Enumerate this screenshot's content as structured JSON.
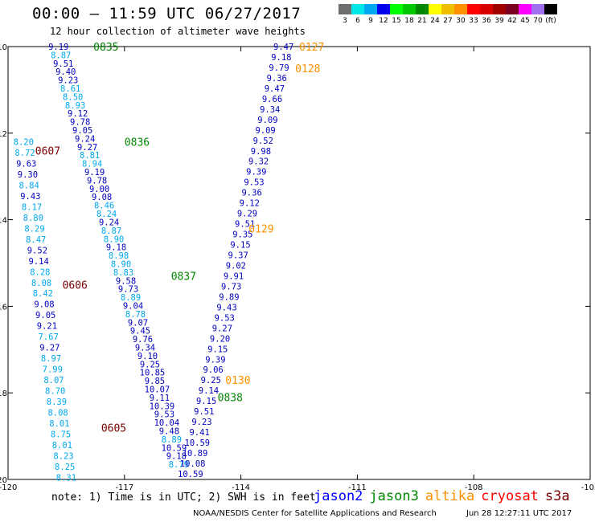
{
  "header": {
    "title": "00:00 – 11:59 UTC 06/27/2017",
    "subtitle": "12 hour collection of altimeter wave heights"
  },
  "colorbar": {
    "colors": [
      "#6e6e6e",
      "#00e8e8",
      "#00a8f0",
      "#0000f0",
      "#00ff00",
      "#00c800",
      "#008800",
      "#ffff00",
      "#f0c000",
      "#ff9000",
      "#ff0000",
      "#d80000",
      "#a00000",
      "#7a0020",
      "#ff00ff",
      "#a070f0",
      "#000000"
    ],
    "labels": [
      "3",
      "6",
      "9",
      "12",
      "15",
      "18",
      "21",
      "24",
      "27",
      "30",
      "33",
      "36",
      "39",
      "42",
      "45",
      "70",
      "(ft)"
    ]
  },
  "note": "note: 1) Time is in UTC; 2) SWH is in feet",
  "legend": [
    {
      "label": "jason2",
      "color": "#0000ff"
    },
    {
      "label": "jason3",
      "color": "#008800"
    },
    {
      "label": "altika",
      "color": "#ff9000"
    },
    {
      "label": "cryosat",
      "color": "#ff0000"
    },
    {
      "label": "s3a",
      "color": "#7a0000"
    }
  ],
  "footer": {
    "credit": "NOAA/NESDIS Center for Satellite Applications and Research",
    "timestamp": "Jun 28 12:27:11 UTC 2017"
  },
  "chart_data": {
    "type": "scatter",
    "xlim": [
      -120,
      -105
    ],
    "ylim": [
      -20,
      -10
    ],
    "x_ticks": [
      -120,
      -117,
      -114,
      -111,
      -108,
      -105
    ],
    "y_ticks": [
      -10,
      -12,
      -14,
      -16,
      -18,
      -20
    ],
    "time_labels": [
      {
        "label": "0835",
        "x": -117.8,
        "y": -10.0,
        "color": "#008800"
      },
      {
        "label": "0836",
        "x": -117.0,
        "y": -12.2,
        "color": "#008800"
      },
      {
        "label": "0837",
        "x": -115.8,
        "y": -15.3,
        "color": "#008800"
      },
      {
        "label": "0838",
        "x": -114.6,
        "y": -18.1,
        "color": "#008800"
      },
      {
        "label": "0127",
        "x": -112.5,
        "y": -10.0,
        "color": "#ff9000"
      },
      {
        "label": "0128",
        "x": -112.6,
        "y": -10.5,
        "color": "#ff9000"
      },
      {
        "label": "0129",
        "x": -113.8,
        "y": -14.2,
        "color": "#ff9000"
      },
      {
        "label": "0130",
        "x": -114.4,
        "y": -17.7,
        "color": "#ff9000"
      },
      {
        "label": "0607",
        "x": -119.3,
        "y": -12.4,
        "color": "#7a0000"
      },
      {
        "label": "0606",
        "x": -118.6,
        "y": -15.5,
        "color": "#7a0000"
      },
      {
        "label": "0605",
        "x": -117.6,
        "y": -18.8,
        "color": "#7a0000"
      }
    ],
    "series": [
      {
        "name": "jason3",
        "color_hi": "#0000c0",
        "color_lo": "#00a8f0",
        "x_start": -118.7,
        "x_end": -115.6,
        "y_start": -10.0,
        "y_end": -19.65,
        "values": [
          9.19,
          8.87,
          9.51,
          9.4,
          9.23,
          8.61,
          8.5,
          8.93,
          9.12,
          9.78,
          9.05,
          9.24,
          9.27,
          8.81,
          8.94,
          9.19,
          9.78,
          9.0,
          9.08,
          8.46,
          8.24,
          9.24,
          8.87,
          8.9,
          9.18,
          8.98,
          8.9,
          8.83,
          9.58,
          9.73,
          8.89,
          9.04,
          8.78,
          9.07,
          9.45,
          9.76,
          9.34,
          9.1,
          9.25,
          10.85,
          9.85,
          10.07,
          9.11,
          10.39,
          9.53,
          10.04,
          9.48,
          8.89,
          10.59,
          9.18,
          8.79
        ]
      },
      {
        "name": "altika",
        "color_hi": "#0000c0",
        "color_lo": "#00a8f0",
        "x_start": -112.9,
        "x_end": -115.3,
        "y_start": -10.0,
        "y_end": -19.87,
        "values": [
          9.47,
          9.18,
          9.79,
          9.36,
          9.47,
          9.66,
          9.34,
          9.09,
          9.09,
          9.52,
          9.98,
          9.32,
          9.39,
          9.53,
          9.36,
          9.12,
          9.29,
          9.51,
          9.35,
          9.15,
          9.37,
          9.02,
          9.91,
          9.73,
          9.89,
          9.43,
          9.53,
          9.27,
          9.2,
          9.15,
          9.39,
          9.06,
          9.25,
          9.14,
          9.15,
          9.51,
          9.23,
          9.41,
          10.59,
          10.89,
          10.08,
          10.59
        ]
      },
      {
        "name": "s3a",
        "color_hi": "#0000c0",
        "color_lo": "#00a8f0",
        "x_start": -119.6,
        "x_end": -118.5,
        "y_start": -12.2,
        "y_end": -19.95,
        "values": [
          8.2,
          8.72,
          9.63,
          9.3,
          8.84,
          9.43,
          8.17,
          8.8,
          8.29,
          8.47,
          9.52,
          9.14,
          8.28,
          8.08,
          8.42,
          9.08,
          9.05,
          9.21,
          7.67,
          9.27,
          8.97,
          7.99,
          8.07,
          8.7,
          8.39,
          8.08,
          8.01,
          8.75,
          8.01,
          8.23,
          8.25,
          8.31
        ]
      }
    ]
  }
}
